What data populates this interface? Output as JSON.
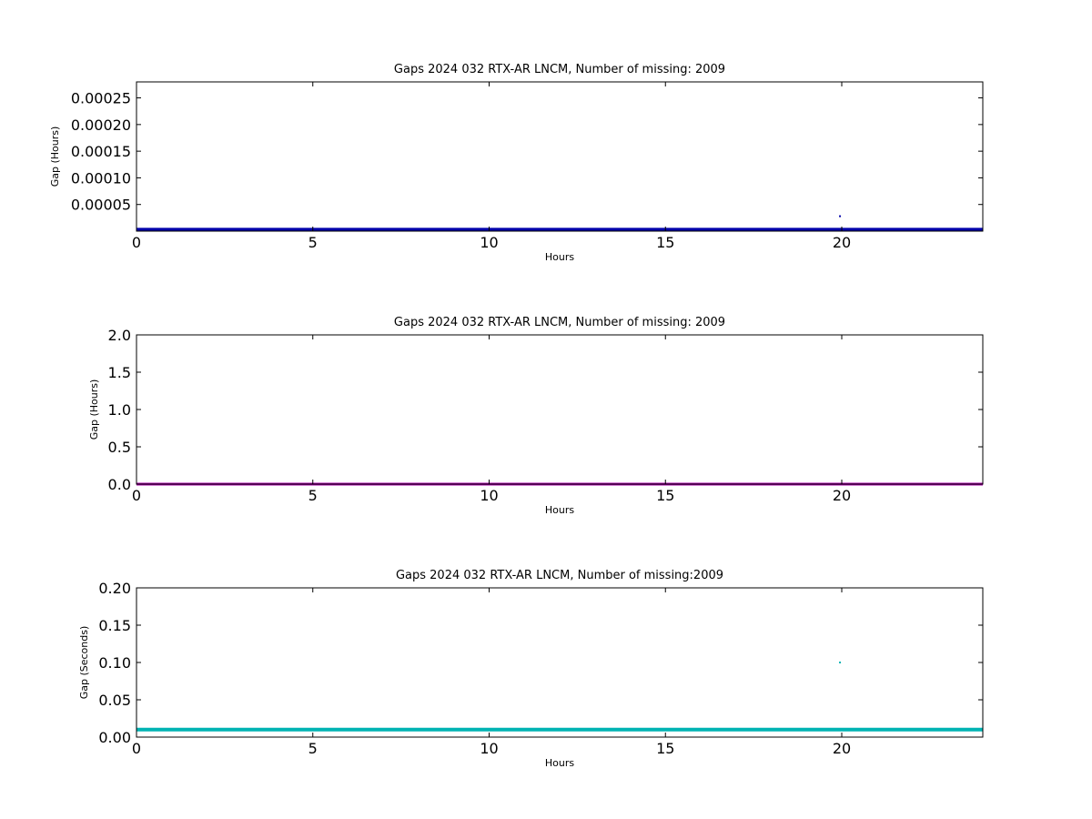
{
  "chart_data": [
    {
      "type": "scatter",
      "title": "Gaps 2024 032 RTX-AR  LNCM, Number of missing: 2009",
      "xlabel": "Hours",
      "ylabel": "Gap (Hours)",
      "xlim": [
        0,
        24
      ],
      "ylim": [
        0,
        0.00028
      ],
      "xticks": [
        0,
        5,
        10,
        15,
        20
      ],
      "xtick_labels": [
        "0",
        "5",
        "10",
        "15",
        "20"
      ],
      "yticks": [
        5e-05,
        0.0001,
        0.00015,
        0.0002,
        0.00025
      ],
      "ytick_labels": [
        "0.00005",
        "0.00010",
        "0.00015",
        "0.00020",
        "0.00025"
      ],
      "grid": false,
      "color": "#0000aa",
      "series": [
        {
          "line": {
            "x": [
              0,
              24
            ],
            "y": [
              2.8e-06,
              2.8e-06
            ]
          },
          "points": [
            {
              "x": 19.95,
              "y": 2.8e-05
            }
          ]
        }
      ]
    },
    {
      "type": "scatter",
      "title": "Gaps 2024 032 RTX-AR  LNCM, Number of missing: 2009",
      "xlabel": "Hours",
      "ylabel": "Gap (Hours)",
      "xlim": [
        0,
        24
      ],
      "ylim": [
        0,
        2.0
      ],
      "xticks": [
        0,
        5,
        10,
        15,
        20
      ],
      "xtick_labels": [
        "0",
        "5",
        "10",
        "15",
        "20"
      ],
      "yticks": [
        0.0,
        0.5,
        1.0,
        1.5,
        2.0
      ],
      "ytick_labels": [
        "0.0",
        "0.5",
        "1.0",
        "1.5",
        "2.0"
      ],
      "grid": false,
      "color": "#aa00aa",
      "series": [
        {
          "line": {
            "x": [
              0,
              24
            ],
            "y": [
              0.0,
              0.0
            ]
          },
          "points": []
        }
      ]
    },
    {
      "type": "scatter",
      "title": "Gaps 2024 032 RTX-AR  LNCM, Number of missing:2009",
      "xlabel": "Hours",
      "ylabel": "Gap (Seconds)",
      "xlim": [
        0,
        24
      ],
      "ylim": [
        0,
        0.2
      ],
      "xticks": [
        0,
        5,
        10,
        15,
        20
      ],
      "xtick_labels": [
        "0",
        "5",
        "10",
        "15",
        "20"
      ],
      "yticks": [
        0.0,
        0.05,
        0.1,
        0.15,
        0.2
      ],
      "ytick_labels": [
        "0.00",
        "0.05",
        "0.10",
        "0.15",
        "0.20"
      ],
      "grid": false,
      "color": "#00b3b3",
      "series": [
        {
          "line": {
            "x": [
              0,
              24
            ],
            "y": [
              0.01,
              0.01
            ]
          },
          "points": [
            {
              "x": 19.95,
              "y": 0.1
            }
          ]
        }
      ]
    }
  ]
}
